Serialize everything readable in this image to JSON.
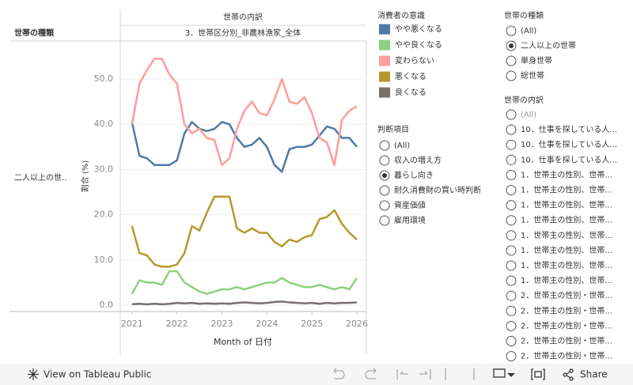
{
  "chart_data": {
    "type": "line",
    "title": "世帯の内訳",
    "subtitle": "3．世帯区分別_非農林漁家_全体",
    "row_header": "世帯の種類",
    "row_label": "二人以上の世..",
    "x_label": "Month of 日付",
    "y_label": "割合 (%)",
    "legend_title": "消費者の意識",
    "x": [
      2021,
      2021.167,
      2021.333,
      2021.5,
      2021.667,
      2021.833,
      2022,
      2022.167,
      2022.333,
      2022.5,
      2022.667,
      2022.833,
      2023,
      2023.167,
      2023.333,
      2023.5,
      2023.667,
      2023.833,
      2024,
      2024.167,
      2024.333,
      2024.5,
      2024.667,
      2024.833,
      2025,
      2025.167,
      2025.333,
      2025.5,
      2025.667,
      2025.833,
      2026
    ],
    "series": [
      {
        "name": "やや悪くなる",
        "color": "#4e79a7",
        "values": [
          40.5,
          33,
          32.5,
          31,
          31,
          31,
          32,
          38,
          40.5,
          39,
          38.5,
          39,
          40.5,
          40,
          37,
          35,
          35.5,
          37,
          35,
          31,
          29.5,
          34.5,
          35,
          35,
          35.5,
          37.5,
          39.5,
          39,
          37,
          37,
          35
        ]
      },
      {
        "name": "やや良くなる",
        "color": "#8cd17d",
        "values": [
          2.5,
          5.5,
          5,
          5,
          4.5,
          7.5,
          7.5,
          5,
          4,
          3,
          2.5,
          3,
          3.5,
          3.5,
          4,
          3.5,
          4,
          4.5,
          5,
          5,
          6,
          5,
          4.5,
          4,
          4,
          4.5,
          4,
          3.5,
          4,
          3.5,
          6
        ]
      },
      {
        "name": "変わらない",
        "color": "#ff9d9a",
        "values": [
          40,
          49,
          52,
          54.5,
          54.5,
          51,
          49,
          40,
          38,
          39,
          37,
          36.5,
          31,
          32.5,
          39,
          43,
          45,
          42.5,
          42,
          45.5,
          50,
          45,
          44.5,
          46,
          42.5,
          37,
          36,
          31,
          41,
          43,
          44
        ]
      },
      {
        "name": "悪くなる",
        "color": "#b6992d",
        "values": [
          17.5,
          11.5,
          11,
          9,
          8.5,
          8.5,
          9,
          11.5,
          17.5,
          16.5,
          20.5,
          24,
          24,
          24,
          17,
          16,
          17,
          16,
          16,
          14,
          13,
          14.5,
          14,
          15,
          15.5,
          19,
          19.5,
          21,
          18,
          16,
          14.5
        ]
      },
      {
        "name": "良くなる",
        "color": "#79706e",
        "values": [
          0.2,
          0.3,
          0.2,
          0.3,
          0.2,
          0.3,
          0.5,
          0.4,
          0.5,
          0.3,
          0.4,
          0.3,
          0.4,
          0.3,
          0.5,
          0.6,
          0.5,
          0.4,
          0.5,
          0.7,
          0.8,
          0.6,
          0.5,
          0.4,
          0.5,
          0.3,
          0.5,
          0.4,
          0.5,
          0.5,
          0.6
        ]
      }
    ],
    "xlim": [
      2020.74,
      2026.21
    ],
    "xticks": [
      2021,
      2022,
      2023,
      2024,
      2025,
      2026
    ],
    "ylim": [
      -1.4,
      58.4
    ],
    "yticks": [
      {
        "value": 0,
        "label": "0.0"
      },
      {
        "value": 10,
        "label": "10.0"
      },
      {
        "value": 20,
        "label": "20.0"
      },
      {
        "value": 30,
        "label": "30.0"
      },
      {
        "value": 40,
        "label": "40.0"
      },
      {
        "value": 50,
        "label": "50.0"
      }
    ],
    "grid": true
  },
  "filters": [
    {
      "title": "判断項目",
      "selected": 2,
      "items": [
        "(All)",
        "収入の増え方",
        "暮らし向き",
        "耐久消費財の買い時判断",
        "資産価値",
        "雇用環境"
      ]
    },
    {
      "title": "世帯の種類",
      "selected": 1,
      "items": [
        "(All)",
        "二人以上の世帯",
        "単身世帯",
        "総世帯"
      ]
    },
    {
      "title": "世帯の内訳",
      "selected": -1,
      "items": [
        "(All)",
        "10．仕事を探している人...",
        "10．仕事を探している人...",
        "10．仕事を探している人...",
        "1．世帯主の性別、世帯...",
        "1．世帯主の性別、世帯...",
        "1．世帯主の性別、世帯...",
        "1．世帯主の性別、世帯...",
        "1．世帯主の性別、世帯...",
        "1．世帯主の性別、世帯...",
        "1．世帯主の性別、世帯...",
        "1．世帯主の性別、世帯...",
        "2．世帯主の性別・世帯...",
        "2．世帯主の性別・世帯...",
        "2．世帯主の性別・世帯...",
        "2．世帯主の性別・世帯...",
        "2．世帯主の性別・世帯..."
      ]
    }
  ],
  "footer": {
    "view": "View on Tableau Public",
    "share": "Share"
  }
}
